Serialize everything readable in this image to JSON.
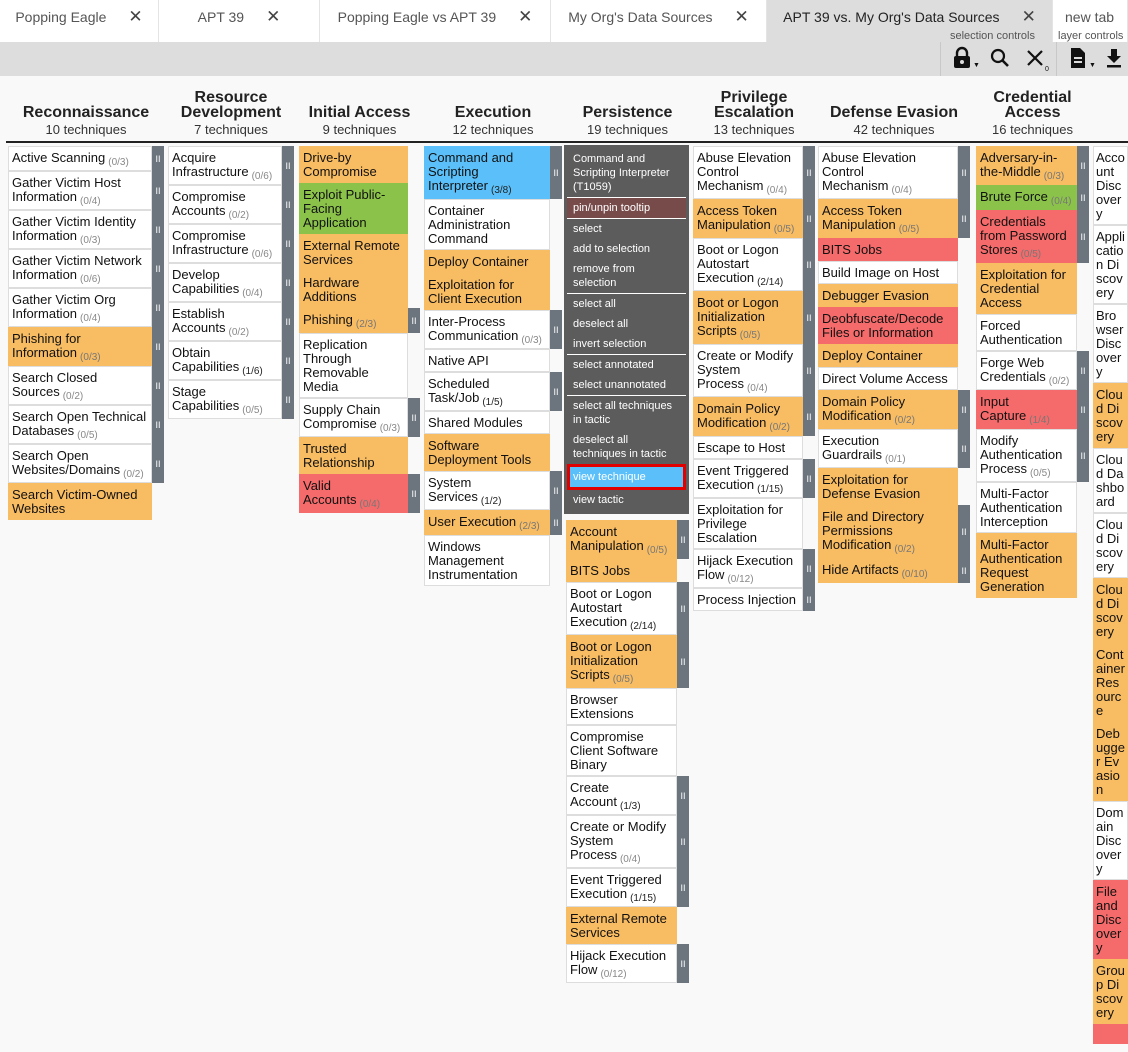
{
  "tabs": [
    {
      "label": "Popping Eagle",
      "active": false
    },
    {
      "label": "APT 39",
      "active": false
    },
    {
      "label": "Popping Eagle vs APT 39",
      "active": false
    },
    {
      "label": "My Org's Data Sources",
      "active": false
    },
    {
      "label": "APT 39 vs. My Org's Data Sources",
      "active": true
    },
    {
      "label": "new tab",
      "active": false
    }
  ],
  "toolbar": {
    "selection_controls_label": "selection controls",
    "layer_controls_label": "layer controls",
    "selection_count": "0",
    "icons": [
      "lock-icon",
      "search-icon",
      "deselect-icon",
      "layer-file-icon",
      "download-icon"
    ]
  },
  "colors": {
    "orange": "#f8bc63",
    "green": "#8bc34a",
    "red": "#f56b6b",
    "blue": "#5bc0fa",
    "white": "#ffffff",
    "handle": "#6c757d"
  },
  "tactics": [
    {
      "name": "Reconnaissance",
      "count": "10 techniques",
      "techniques": [
        {
          "name": "Active Scanning",
          "sub": "(0/3)",
          "color": "white"
        },
        {
          "name": "Gather Victim Host Information",
          "sub": "(0/4)",
          "color": "white"
        },
        {
          "name": "Gather Victim Identity Information",
          "sub": "(0/3)",
          "color": "white"
        },
        {
          "name": "Gather Victim Network Information",
          "sub": "(0/6)",
          "color": "white"
        },
        {
          "name": "Gather Victim Org Information",
          "sub": "(0/4)",
          "color": "white"
        },
        {
          "name": "Phishing for Information",
          "sub": "(0/3)",
          "color": "orange"
        },
        {
          "name": "Search Closed Sources",
          "sub": "(0/2)",
          "color": "white"
        },
        {
          "name": "Search Open Technical Databases",
          "sub": "(0/5)",
          "color": "white"
        },
        {
          "name": "Search Open Websites/Domains",
          "sub": "(0/2)",
          "color": "white"
        },
        {
          "name": "Search Victim-Owned Websites",
          "sub": "",
          "color": "orange"
        }
      ]
    },
    {
      "name": "Resource Development",
      "count": "7 techniques",
      "techniques": [
        {
          "name": "Acquire Infrastructure",
          "sub": "(0/6)",
          "color": "white"
        },
        {
          "name": "Compromise Accounts",
          "sub": "(0/2)",
          "color": "white"
        },
        {
          "name": "Compromise Infrastructure",
          "sub": "(0/6)",
          "color": "white"
        },
        {
          "name": "Develop Capabilities",
          "sub": "(0/4)",
          "color": "white"
        },
        {
          "name": "Establish Accounts",
          "sub": "(0/2)",
          "color": "white"
        },
        {
          "name": "Obtain Capabilities",
          "sub": "(1/6)",
          "color": "white"
        },
        {
          "name": "Stage Capabilities",
          "sub": "(0/5)",
          "color": "white"
        }
      ]
    },
    {
      "name": "Initial Access",
      "count": "9 techniques",
      "techniques": [
        {
          "name": "Drive-by Compromise",
          "sub": "",
          "color": "orange"
        },
        {
          "name": "Exploit Public-Facing Application",
          "sub": "",
          "color": "green"
        },
        {
          "name": "External Remote Services",
          "sub": "",
          "color": "orange"
        },
        {
          "name": "Hardware Additions",
          "sub": "",
          "color": "orange"
        },
        {
          "name": "Phishing",
          "sub": "(2/3)",
          "color": "orange"
        },
        {
          "name": "Replication Through Removable Media",
          "sub": "",
          "color": "white"
        },
        {
          "name": "Supply Chain Compromise",
          "sub": "(0/3)",
          "color": "white"
        },
        {
          "name": "Trusted Relationship",
          "sub": "",
          "color": "orange"
        },
        {
          "name": "Valid Accounts",
          "sub": "(0/4)",
          "color": "red"
        }
      ]
    },
    {
      "name": "Execution",
      "count": "12 techniques",
      "techniques": [
        {
          "name": "Command and Scripting Interpreter",
          "sub": "(3/8)",
          "color": "blue"
        },
        {
          "name": "Container Administration Command",
          "sub": "",
          "color": "white"
        },
        {
          "name": "Deploy Container",
          "sub": "",
          "color": "orange"
        },
        {
          "name": "Exploitation for Client Execution",
          "sub": "",
          "color": "orange"
        },
        {
          "name": "Inter-Process Communication",
          "sub": "(0/3)",
          "color": "white"
        },
        {
          "name": "Native API",
          "sub": "",
          "color": "white"
        },
        {
          "name": "Scheduled Task/Job",
          "sub": "(1/5)",
          "color": "white"
        },
        {
          "name": "Shared Modules",
          "sub": "",
          "color": "white"
        },
        {
          "name": "Software Deployment Tools",
          "sub": "",
          "color": "orange"
        },
        {
          "name": "System Services",
          "sub": "(1/2)",
          "color": "white"
        },
        {
          "name": "User Execution",
          "sub": "(2/3)",
          "color": "orange"
        },
        {
          "name": "Windows Management Instrumentation",
          "sub": "",
          "color": "white"
        }
      ]
    },
    {
      "name": "Persistence",
      "count": "19 techniques",
      "techniques": [
        {
          "name": "Account Manipulation",
          "sub": "(0/5)",
          "color": "orange"
        },
        {
          "name": "BITS Jobs",
          "sub": "",
          "color": "orange"
        },
        {
          "name": "Boot or Logon Autostart Execution",
          "sub": "(2/14)",
          "color": "white"
        },
        {
          "name": "Boot or Logon Initialization Scripts",
          "sub": "(0/5)",
          "color": "orange"
        },
        {
          "name": "Browser Extensions",
          "sub": "",
          "color": "white"
        },
        {
          "name": "Compromise Client Software Binary",
          "sub": "",
          "color": "white"
        },
        {
          "name": "Create Account",
          "sub": "(1/3)",
          "color": "white"
        },
        {
          "name": "Create or Modify System Process",
          "sub": "(0/4)",
          "color": "white"
        },
        {
          "name": "Event Triggered Execution",
          "sub": "(1/15)",
          "color": "white"
        },
        {
          "name": "External Remote Services",
          "sub": "",
          "color": "orange"
        },
        {
          "name": "Hijack Execution Flow",
          "sub": "(0/12)",
          "color": "white"
        }
      ]
    },
    {
      "name": "Privilege Escalation",
      "count": "13 techniques",
      "techniques": [
        {
          "name": "Abuse Elevation Control Mechanism",
          "sub": "(0/4)",
          "color": "white"
        },
        {
          "name": "Access Token Manipulation",
          "sub": "(0/5)",
          "color": "orange"
        },
        {
          "name": "Boot or Logon Autostart Execution",
          "sub": "(2/14)",
          "color": "white"
        },
        {
          "name": "Boot or Logon Initialization Scripts",
          "sub": "(0/5)",
          "color": "orange"
        },
        {
          "name": "Create or Modify System Process",
          "sub": "(0/4)",
          "color": "white"
        },
        {
          "name": "Domain Policy Modification",
          "sub": "(0/2)",
          "color": "orange"
        },
        {
          "name": "Escape to Host",
          "sub": "",
          "color": "white"
        },
        {
          "name": "Event Triggered Execution",
          "sub": "(1/15)",
          "color": "white"
        },
        {
          "name": "Exploitation for Privilege Escalation",
          "sub": "",
          "color": "white"
        },
        {
          "name": "Hijack Execution Flow",
          "sub": "(0/12)",
          "color": "white"
        },
        {
          "name": "Process Injection",
          "sub": "",
          "color": "white"
        }
      ]
    },
    {
      "name": "Defense Evasion",
      "count": "42 techniques",
      "techniques": [
        {
          "name": "Abuse Elevation Control Mechanism",
          "sub": "(0/4)",
          "color": "white"
        },
        {
          "name": "Access Token Manipulation",
          "sub": "(0/5)",
          "color": "orange"
        },
        {
          "name": "BITS Jobs",
          "sub": "",
          "color": "red"
        },
        {
          "name": "Build Image on Host",
          "sub": "",
          "color": "white"
        },
        {
          "name": "Debugger Evasion",
          "sub": "",
          "color": "orange"
        },
        {
          "name": "Deobfuscate/Decode Files or Information",
          "sub": "",
          "color": "red"
        },
        {
          "name": "Deploy Container",
          "sub": "",
          "color": "orange"
        },
        {
          "name": "Direct Volume Access",
          "sub": "",
          "color": "white"
        },
        {
          "name": "Domain Policy Modification",
          "sub": "(0/2)",
          "color": "orange"
        },
        {
          "name": "Execution Guardrails",
          "sub": "(0/1)",
          "color": "white"
        },
        {
          "name": "Exploitation for Defense Evasion",
          "sub": "",
          "color": "orange"
        },
        {
          "name": "File and Directory Permissions Modification",
          "sub": "(0/2)",
          "color": "orange"
        },
        {
          "name": "Hide Artifacts",
          "sub": "(0/10)",
          "color": "orange"
        }
      ]
    },
    {
      "name": "Credential Access",
      "count": "16 techniques",
      "techniques": [
        {
          "name": "Adversary-in-the-Middle",
          "sub": "(0/3)",
          "color": "orange"
        },
        {
          "name": "Brute Force",
          "sub": "(0/4)",
          "color": "green"
        },
        {
          "name": "Credentials from Password Stores",
          "sub": "(0/5)",
          "color": "red"
        },
        {
          "name": "Exploitation for Credential Access",
          "sub": "",
          "color": "orange"
        },
        {
          "name": "Forced Authentication",
          "sub": "",
          "color": "white"
        },
        {
          "name": "Forge Web Credentials",
          "sub": "(0/2)",
          "color": "white"
        },
        {
          "name": "Input Capture",
          "sub": "(1/4)",
          "color": "red"
        },
        {
          "name": "Modify Authentication Process",
          "sub": "(0/5)",
          "color": "white"
        },
        {
          "name": "Multi-Factor Authentication Interception",
          "sub": "",
          "color": "white"
        },
        {
          "name": "Multi-Factor Authentication Request Generation",
          "sub": "",
          "color": "orange"
        }
      ]
    },
    {
      "name": "",
      "count": "",
      "techniques": [
        {
          "name": "Account Discovery",
          "sub": "",
          "color": "white"
        },
        {
          "name": "Application Discovery",
          "sub": "",
          "color": "white"
        },
        {
          "name": "Browser Discovery",
          "sub": "",
          "color": "white"
        },
        {
          "name": "Cloud Discovery",
          "sub": "",
          "color": "orange"
        },
        {
          "name": "Cloud Dashboard",
          "sub": "",
          "color": "white"
        },
        {
          "name": "Cloud Discovery",
          "sub": "",
          "color": "white"
        },
        {
          "name": "Cloud Discovery",
          "sub": "",
          "color": "orange"
        },
        {
          "name": "Container Resource",
          "sub": "",
          "color": "orange"
        },
        {
          "name": "Debugger Evasion",
          "sub": "",
          "color": "orange"
        },
        {
          "name": "Domain Discovery",
          "sub": "",
          "color": "white"
        },
        {
          "name": "File and Discovery",
          "sub": "",
          "color": "red"
        },
        {
          "name": "Group Discovery",
          "sub": "",
          "color": "orange"
        },
        {
          "name": "",
          "sub": "",
          "color": "red"
        }
      ]
    }
  ],
  "context_menu": {
    "title": "Command and Scripting Interpreter (T1059)",
    "items": [
      "pin/unpin tooltip",
      "select",
      "add to selection",
      "remove from selection",
      "select all",
      "deselect all",
      "invert selection",
      "select annotated",
      "select unannotated",
      "select all techniques in tactic",
      "deselect all techniques in tactic",
      "view technique",
      "view tactic"
    ],
    "highlighted": "view technique"
  }
}
